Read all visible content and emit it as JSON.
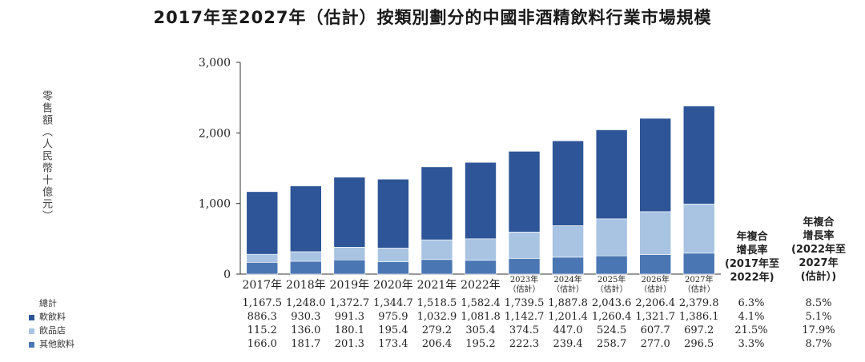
{
  "title": "2017年至2027年（估計）按類別劃分的中國非酒精飲料行業市場規模",
  "chart_data": {
    "type": "bar",
    "stacked": true,
    "title": "2017年至2027年（估計）按類別劃分的中國非酒精飲料行業市場規模",
    "ylabel": "零售額（人民幣十億元）",
    "ylim": [
      0,
      3000
    ],
    "yticks": [
      "0",
      "1,000",
      "2,000",
      "3,000"
    ],
    "yticks_values": [
      0,
      1000,
      2000,
      3000
    ],
    "categories": [
      [
        "2017年"
      ],
      [
        "2018年"
      ],
      [
        "2019年"
      ],
      [
        "2020年"
      ],
      [
        "2021年"
      ],
      [
        "2022年"
      ],
      [
        "2023年",
        "（估計）"
      ],
      [
        "2024年",
        "（估計）"
      ],
      [
        "2025年",
        "（估計）"
      ],
      [
        "2026年",
        "（估計）"
      ],
      [
        "2027年",
        "（估計）"
      ]
    ],
    "series": [
      {
        "name": "其他飲料",
        "color": "#4a77b4",
        "values": [
          166.0,
          181.7,
          201.3,
          173.4,
          206.4,
          195.2,
          222.3,
          239.4,
          258.7,
          277.0,
          296.5
        ],
        "labels": [
          "166.0",
          "181.7",
          "201.3",
          "173.4",
          "206.4",
          "195.2",
          "222.3",
          "239.4",
          "258.7",
          "277.0",
          "296.5"
        ],
        "cagr": [
          "3.3%",
          "8.7%"
        ]
      },
      {
        "name": "飲品店",
        "color": "#a9c4e2",
        "values": [
          115.2,
          136.0,
          180.1,
          195.4,
          279.2,
          305.4,
          374.5,
          447.0,
          524.5,
          607.7,
          697.2
        ],
        "labels": [
          "115.2",
          "136.0",
          "180.1",
          "195.4",
          "279.2",
          "305.4",
          "374.5",
          "447.0",
          "524.5",
          "607.7",
          "697.2"
        ],
        "cagr": [
          "21.5%",
          "17.9%"
        ]
      },
      {
        "name": "軟飲料",
        "color": "#2d5597",
        "values": [
          886.3,
          930.3,
          991.3,
          975.9,
          1032.9,
          1081.8,
          1142.7,
          1201.4,
          1260.4,
          1321.7,
          1386.1
        ],
        "labels": [
          "886.3",
          "930.3",
          "991.3",
          "975.9",
          "1,032.9",
          "1,081.8",
          "1,142.7",
          "1,201.4",
          "1,260.4",
          "1,321.7",
          "1,386.1"
        ],
        "cagr": [
          "4.1%",
          "5.1%"
        ]
      }
    ],
    "totals": {
      "name": "總計",
      "values": [
        1167.5,
        1248.0,
        1372.7,
        1344.7,
        1518.5,
        1582.4,
        1739.5,
        1887.8,
        2043.6,
        2206.4,
        2379.8
      ],
      "labels": [
        "1,167.5",
        "1,248.0",
        "1,372.7",
        "1,344.7",
        "1,518.5",
        "1,582.4",
        "1,739.5",
        "1,887.8",
        "2,043.6",
        "2,206.4",
        "2,379.8"
      ],
      "cagr": [
        "6.3%",
        "8.5%"
      ]
    },
    "cagr_headers": [
      "年複合\n增長率\n(2017年至\n2022年)",
      "年複合\n增長率\n(2022年至\n2027年\n(估計）)"
    ],
    "table_rows": [
      {
        "label": "總計",
        "ref": "totals",
        "color": ""
      },
      {
        "label": "軟飲料",
        "ref": "series.2",
        "color": "#2d5597"
      },
      {
        "label": "飲品店",
        "ref": "series.1",
        "color": "#a9c4e2"
      },
      {
        "label": "其他飲料",
        "ref": "series.0",
        "color": "#4a77b4"
      }
    ]
  }
}
